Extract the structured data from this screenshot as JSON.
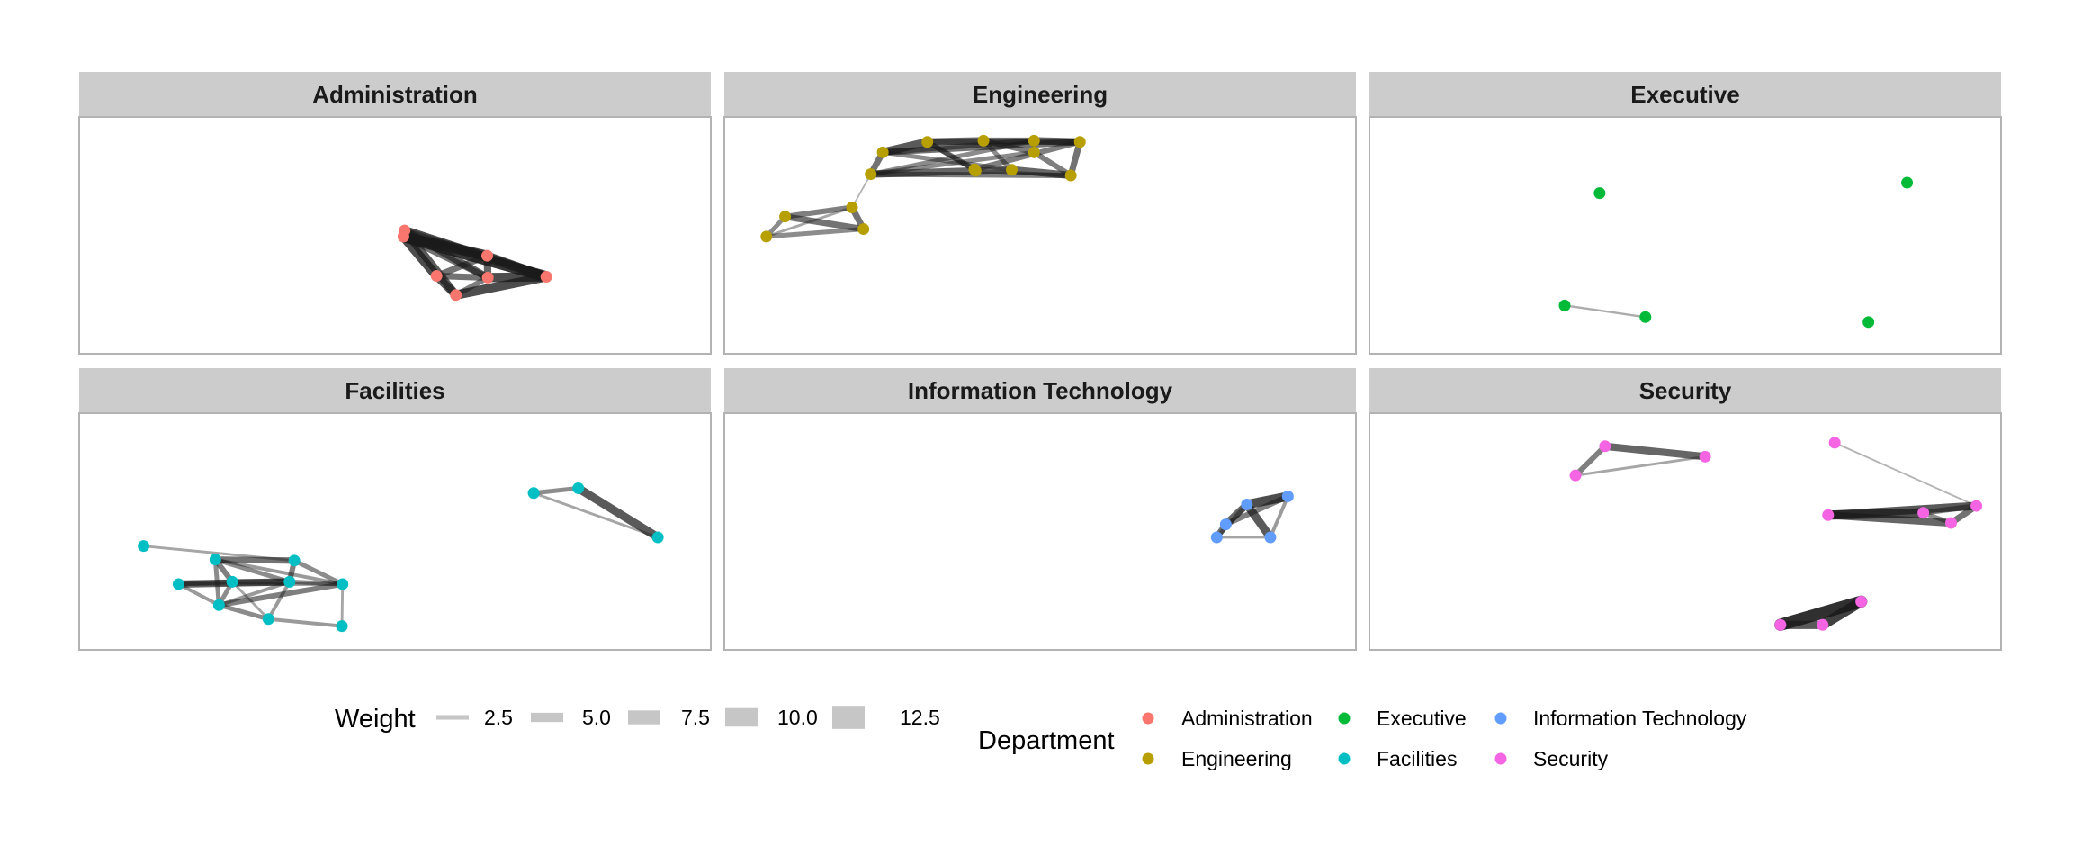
{
  "figure": {
    "type": "faceted-network",
    "facet_variable": "Department",
    "background": "#ffffff",
    "panel_border": "#b3b3b3",
    "strip_fill": "#cccccc",
    "edge_color": "#1a1a1a"
  },
  "department_colors": {
    "Administration": "#F8766D",
    "Engineering": "#B79F00",
    "Executive": "#00BA38",
    "Facilities": "#00BFC4",
    "Information Technology": "#619CFF",
    "Security": "#F564E3"
  },
  "chart_data": {
    "type": "network",
    "facets": [
      {
        "title": "Administration",
        "nodes": [
          {
            "id": "A1",
            "x": 0.514,
            "y": 0.494
          },
          {
            "id": "A2",
            "x": 0.516,
            "y": 0.523
          },
          {
            "id": "A3",
            "x": 0.653,
            "y": 0.402
          },
          {
            "id": "A4",
            "x": 0.751,
            "y": 0.301
          },
          {
            "id": "A5",
            "x": 0.569,
            "y": 0.305
          },
          {
            "id": "A6",
            "x": 0.654,
            "y": 0.297
          },
          {
            "id": "A7",
            "x": 0.601,
            "y": 0.213
          }
        ],
        "edges": [
          {
            "from": "A1",
            "to": "A3",
            "weight": 10
          },
          {
            "from": "A1",
            "to": "A4",
            "weight": 11
          },
          {
            "from": "A2",
            "to": "A4",
            "weight": 9
          },
          {
            "from": "A1",
            "to": "A5",
            "weight": 9
          },
          {
            "from": "A2",
            "to": "A6",
            "weight": 7
          },
          {
            "from": "A3",
            "to": "A4",
            "weight": 8
          },
          {
            "from": "A3",
            "to": "A6",
            "weight": 7
          },
          {
            "from": "A3",
            "to": "A5",
            "weight": 6
          },
          {
            "from": "A5",
            "to": "A7",
            "weight": 8
          },
          {
            "from": "A5",
            "to": "A6",
            "weight": 6
          },
          {
            "from": "A6",
            "to": "A4",
            "weight": 9
          },
          {
            "from": "A7",
            "to": "A4",
            "weight": 9
          },
          {
            "from": "A7",
            "to": "A6",
            "weight": 5
          },
          {
            "from": "A2",
            "to": "A7",
            "weight": 8
          },
          {
            "from": "A1",
            "to": "A6",
            "weight": 6
          },
          {
            "from": "A2",
            "to": "A3",
            "weight": 5
          }
        ]
      },
      {
        "title": "Engineering",
        "nodes": [
          {
            "id": "E1",
            "x": 0.239,
            "y": 0.899
          },
          {
            "id": "E2",
            "x": 0.313,
            "y": 0.949
          },
          {
            "id": "E3",
            "x": 0.406,
            "y": 0.955
          },
          {
            "id": "E4",
            "x": 0.49,
            "y": 0.955
          },
          {
            "id": "E5",
            "x": 0.566,
            "y": 0.949
          },
          {
            "id": "E6",
            "x": 0.49,
            "y": 0.899
          },
          {
            "id": "E7",
            "x": 0.391,
            "y": 0.817
          },
          {
            "id": "E8",
            "x": 0.219,
            "y": 0.794
          },
          {
            "id": "E9",
            "x": 0.393,
            "y": 0.81
          },
          {
            "id": "E10",
            "x": 0.453,
            "y": 0.815
          },
          {
            "id": "E11",
            "x": 0.551,
            "y": 0.788
          },
          {
            "id": "E12",
            "x": 0.188,
            "y": 0.634
          },
          {
            "id": "E13",
            "x": 0.077,
            "y": 0.59
          },
          {
            "id": "E14",
            "x": 0.207,
            "y": 0.53
          },
          {
            "id": "E15",
            "x": 0.046,
            "y": 0.494
          }
        ],
        "edges": [
          {
            "from": "E1",
            "to": "E2",
            "weight": 8
          },
          {
            "from": "E2",
            "to": "E3",
            "weight": 7
          },
          {
            "from": "E3",
            "to": "E4",
            "weight": 6
          },
          {
            "from": "E4",
            "to": "E5",
            "weight": 7
          },
          {
            "from": "E1",
            "to": "E8",
            "weight": 6
          },
          {
            "from": "E8",
            "to": "E9",
            "weight": 7
          },
          {
            "from": "E9",
            "to": "E10",
            "weight": 6
          },
          {
            "from": "E10",
            "to": "E11",
            "weight": 7
          },
          {
            "from": "E11",
            "to": "E5",
            "weight": 6
          },
          {
            "from": "E1",
            "to": "E4",
            "weight": 5
          },
          {
            "from": "E1",
            "to": "E5",
            "weight": 6
          },
          {
            "from": "E2",
            "to": "E5",
            "weight": 5
          },
          {
            "from": "E2",
            "to": "E9",
            "weight": 4
          },
          {
            "from": "E3",
            "to": "E6",
            "weight": 5
          },
          {
            "from": "E3",
            "to": "E10",
            "weight": 4
          },
          {
            "from": "E4",
            "to": "E6",
            "weight": 4
          },
          {
            "from": "E6",
            "to": "E11",
            "weight": 5
          },
          {
            "from": "E6",
            "to": "E8",
            "weight": 4
          },
          {
            "from": "E7",
            "to": "E2",
            "weight": 5
          },
          {
            "from": "E7",
            "to": "E5",
            "weight": 5
          },
          {
            "from": "E7",
            "to": "E9",
            "weight": 4
          },
          {
            "from": "E8",
            "to": "E11",
            "weight": 5
          },
          {
            "from": "E8",
            "to": "E4",
            "weight": 4
          },
          {
            "from": "E9",
            "to": "E11",
            "weight": 3
          },
          {
            "from": "E10",
            "to": "E1",
            "weight": 4
          },
          {
            "from": "E12",
            "to": "E13",
            "weight": 5
          },
          {
            "from": "E12",
            "to": "E14",
            "weight": 6
          },
          {
            "from": "E13",
            "to": "E14",
            "weight": 6
          },
          {
            "from": "E13",
            "to": "E15",
            "weight": 4
          },
          {
            "from": "E15",
            "to": "E14",
            "weight": 4
          },
          {
            "from": "E12",
            "to": "E15",
            "weight": 2
          },
          {
            "from": "E12",
            "to": "E8",
            "weight": 1
          }
        ]
      },
      {
        "title": "Executive",
        "nodes": [
          {
            "id": "X1",
            "x": 0.358,
            "y": 0.703
          },
          {
            "id": "X2",
            "x": 0.868,
            "y": 0.753
          },
          {
            "id": "X3",
            "x": 0.3,
            "y": 0.163
          },
          {
            "id": "X4",
            "x": 0.434,
            "y": 0.107
          },
          {
            "id": "X5",
            "x": 0.804,
            "y": 0.083
          }
        ],
        "edges": [
          {
            "from": "X3",
            "to": "X4",
            "weight": 1.5
          }
        ]
      },
      {
        "title": "Facilities",
        "nodes": [
          {
            "id": "F1",
            "x": 0.73,
            "y": 0.685
          },
          {
            "id": "F2",
            "x": 0.804,
            "y": 0.708
          },
          {
            "id": "F3",
            "x": 0.936,
            "y": 0.472
          },
          {
            "id": "F4",
            "x": 0.083,
            "y": 0.43
          },
          {
            "id": "F5",
            "x": 0.202,
            "y": 0.365
          },
          {
            "id": "F6",
            "x": 0.333,
            "y": 0.36
          },
          {
            "id": "F7",
            "x": 0.141,
            "y": 0.247
          },
          {
            "id": "F8",
            "x": 0.23,
            "y": 0.258
          },
          {
            "id": "F9",
            "x": 0.325,
            "y": 0.258
          },
          {
            "id": "F10",
            "x": 0.413,
            "y": 0.247
          },
          {
            "id": "F11",
            "x": 0.208,
            "y": 0.146
          },
          {
            "id": "F12",
            "x": 0.29,
            "y": 0.079
          },
          {
            "id": "F13",
            "x": 0.412,
            "y": 0.045
          }
        ],
        "edges": [
          {
            "from": "F1",
            "to": "F2",
            "weight": 4
          },
          {
            "from": "F2",
            "to": "F3",
            "weight": 8
          },
          {
            "from": "F1",
            "to": "F3",
            "weight": 2
          },
          {
            "from": "F4",
            "to": "F6",
            "weight": 2
          },
          {
            "from": "F5",
            "to": "F6",
            "weight": 6
          },
          {
            "from": "F5",
            "to": "F8",
            "weight": 5
          },
          {
            "from": "F5",
            "to": "F11",
            "weight": 4
          },
          {
            "from": "F5",
            "to": "F9",
            "weight": 4
          },
          {
            "from": "F6",
            "to": "F9",
            "weight": 5
          },
          {
            "from": "F6",
            "to": "F10",
            "weight": 4
          },
          {
            "from": "F7",
            "to": "F8",
            "weight": 4
          },
          {
            "from": "F7",
            "to": "F9",
            "weight": 7
          },
          {
            "from": "F7",
            "to": "F11",
            "weight": 3
          },
          {
            "from": "F8",
            "to": "F9",
            "weight": 5
          },
          {
            "from": "F8",
            "to": "F11",
            "weight": 4
          },
          {
            "from": "F9",
            "to": "F10",
            "weight": 4
          },
          {
            "from": "F9",
            "to": "F11",
            "weight": 3
          },
          {
            "from": "F10",
            "to": "F13",
            "weight": 2
          },
          {
            "from": "F11",
            "to": "F12",
            "weight": 4
          },
          {
            "from": "F12",
            "to": "F13",
            "weight": 3
          },
          {
            "from": "F11",
            "to": "F10",
            "weight": 5
          },
          {
            "from": "F7",
            "to": "F10",
            "weight": 3
          },
          {
            "from": "F8",
            "to": "F12",
            "weight": 2
          },
          {
            "from": "F9",
            "to": "F12",
            "weight": 3
          },
          {
            "from": "F5",
            "to": "F10",
            "weight": 3
          }
        ]
      },
      {
        "title": "Information Technology",
        "nodes": [
          {
            "id": "I1",
            "x": 0.911,
            "y": 0.669
          },
          {
            "id": "I2",
            "x": 0.843,
            "y": 0.63
          },
          {
            "id": "I3",
            "x": 0.808,
            "y": 0.534
          },
          {
            "id": "I4",
            "x": 0.793,
            "y": 0.472
          },
          {
            "id": "I5",
            "x": 0.882,
            "y": 0.472
          }
        ],
        "edges": [
          {
            "from": "I1",
            "to": "I2",
            "weight": 9
          },
          {
            "from": "I2",
            "to": "I3",
            "weight": 7
          },
          {
            "from": "I3",
            "to": "I4",
            "weight": 6
          },
          {
            "from": "I4",
            "to": "I5",
            "weight": 2
          },
          {
            "from": "I2",
            "to": "I5",
            "weight": 8
          },
          {
            "from": "I1",
            "to": "I5",
            "weight": 3
          },
          {
            "from": "I2",
            "to": "I4",
            "weight": 4
          },
          {
            "from": "I1",
            "to": "I3",
            "weight": 5
          }
        ]
      },
      {
        "title": "Security",
        "nodes": [
          {
            "id": "S1",
            "x": 0.367,
            "y": 0.91
          },
          {
            "id": "S2",
            "x": 0.533,
            "y": 0.86
          },
          {
            "id": "S3",
            "x": 0.318,
            "y": 0.77
          },
          {
            "id": "S4",
            "x": 0.748,
            "y": 0.927
          },
          {
            "id": "S5",
            "x": 0.983,
            "y": 0.623
          },
          {
            "id": "S6",
            "x": 0.895,
            "y": 0.59
          },
          {
            "id": "S7",
            "x": 0.737,
            "y": 0.579
          },
          {
            "id": "S8",
            "x": 0.941,
            "y": 0.541
          },
          {
            "id": "S9",
            "x": 0.792,
            "y": 0.163
          },
          {
            "id": "S10",
            "x": 0.658,
            "y": 0.051
          },
          {
            "id": "S11",
            "x": 0.728,
            "y": 0.051
          }
        ],
        "edges": [
          {
            "from": "S1",
            "to": "S2",
            "weight": 7
          },
          {
            "from": "S1",
            "to": "S3",
            "weight": 5
          },
          {
            "from": "S3",
            "to": "S2",
            "weight": 2
          },
          {
            "from": "S4",
            "to": "S5",
            "weight": 1
          },
          {
            "from": "S7",
            "to": "S5",
            "weight": 8
          },
          {
            "from": "S7",
            "to": "S6",
            "weight": 9
          },
          {
            "from": "S7",
            "to": "S8",
            "weight": 7
          },
          {
            "from": "S6",
            "to": "S5",
            "weight": 5
          },
          {
            "from": "S8",
            "to": "S5",
            "weight": 6
          },
          {
            "from": "S6",
            "to": "S8",
            "weight": 4
          },
          {
            "from": "S9",
            "to": "S10",
            "weight": 12
          },
          {
            "from": "S9",
            "to": "S11",
            "weight": 10
          },
          {
            "from": "S10",
            "to": "S11",
            "weight": 8
          }
        ]
      }
    ]
  },
  "legend": {
    "weight": {
      "title": "Weight",
      "entries": [
        {
          "label": "2.5",
          "weight": 2.5
        },
        {
          "label": "5.0",
          "weight": 5.0
        },
        {
          "label": "7.5",
          "weight": 7.5
        },
        {
          "label": "10.0",
          "weight": 10.0
        },
        {
          "label": "12.5",
          "weight": 12.5
        }
      ]
    },
    "department": {
      "title": "Department",
      "entries": [
        {
          "label": "Administration",
          "color": "#F8766D"
        },
        {
          "label": "Engineering",
          "color": "#B79F00"
        },
        {
          "label": "Executive",
          "color": "#00BA38"
        },
        {
          "label": "Facilities",
          "color": "#00BFC4"
        },
        {
          "label": "Information Technology",
          "color": "#619CFF"
        },
        {
          "label": "Security",
          "color": "#F564E3"
        }
      ]
    }
  }
}
